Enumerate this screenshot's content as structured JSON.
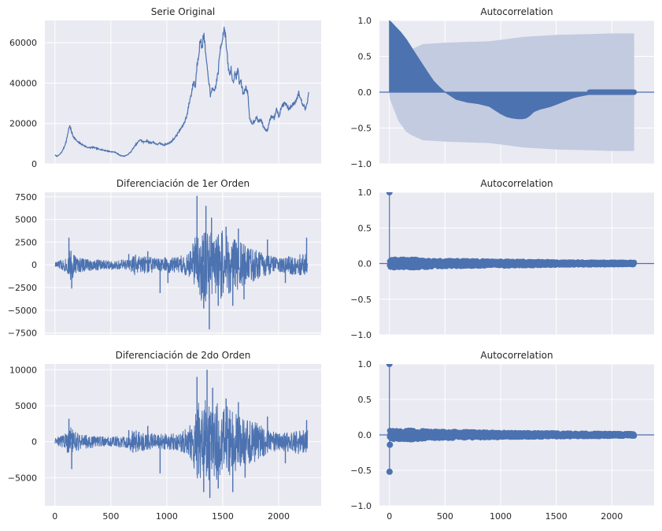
{
  "figure": {
    "background": "#ffffff",
    "plot_background": "#eaeaf2",
    "grid_color": "#ffffff",
    "line_color": "#4c72b0",
    "band_color": "#c3cbe0"
  },
  "chart_data": [
    {
      "type": "line",
      "title": "Serie Original",
      "xlabel": "",
      "ylabel": "",
      "xlim": [
        -90,
        2380
      ],
      "ylim": [
        0,
        71000
      ],
      "xticks": [
        0,
        500,
        1000,
        1500,
        2000
      ],
      "show_xticklabels": false,
      "yticks": [
        0,
        20000,
        40000,
        60000
      ],
      "yticklabels": [
        "0",
        "20000",
        "40000",
        "60000"
      ],
      "grid": true,
      "series": [
        {
          "x": [
            0,
            20,
            40,
            60,
            80,
            100,
            115,
            130,
            145,
            160,
            180,
            200,
            230,
            260,
            300,
            340,
            380,
            420,
            460,
            500,
            540,
            580,
            620,
            650,
            680,
            700,
            730,
            760,
            790,
            820,
            850,
            880,
            910,
            940,
            970,
            1000,
            1040,
            1080,
            1120,
            1150,
            1180,
            1200,
            1220,
            1240,
            1255,
            1270,
            1285,
            1300,
            1315,
            1330,
            1345,
            1360,
            1375,
            1390,
            1405,
            1420,
            1440,
            1460,
            1480,
            1500,
            1515,
            1530,
            1545,
            1560,
            1575,
            1590,
            1605,
            1620,
            1635,
            1650,
            1665,
            1680,
            1695,
            1710,
            1725,
            1740,
            1760,
            1780,
            1800,
            1820,
            1840,
            1860,
            1880,
            1900,
            1920,
            1940,
            1960,
            1980,
            2000,
            2030,
            2060,
            2090,
            2120,
            2150,
            2180,
            2210,
            2240,
            2255,
            2270
          ],
          "y": [
            4200,
            3800,
            4500,
            5800,
            8000,
            11000,
            15000,
            19000,
            16500,
            14000,
            12500,
            11000,
            10000,
            9000,
            8000,
            8200,
            7500,
            7000,
            6500,
            6000,
            5800,
            4200,
            3800,
            4500,
            6000,
            7800,
            9800,
            12000,
            10800,
            11500,
            10400,
            10800,
            9600,
            10200,
            9400,
            9800,
            11000,
            13500,
            17000,
            19500,
            24000,
            30000,
            35000,
            41000,
            38000,
            49000,
            55000,
            61000,
            58000,
            64000,
            56000,
            47000,
            42000,
            33000,
            38000,
            35000,
            39000,
            46000,
            58000,
            63000,
            68000,
            60000,
            50000,
            44000,
            47000,
            40000,
            44000,
            43000,
            47000,
            40000,
            41000,
            35000,
            36000,
            38000,
            35000,
            22000,
            20000,
            21000,
            23000,
            21000,
            22000,
            19000,
            17000,
            16500,
            22000,
            24000,
            22500,
            28000,
            23000,
            29000,
            30000,
            27000,
            29000,
            31000,
            35000,
            30000,
            27000,
            31000,
            35500
          ]
        }
      ]
    },
    {
      "type": "area",
      "title": "Autocorrelation",
      "xlabel": "",
      "ylabel": "",
      "xlim": [
        -90,
        2380
      ],
      "ylim": [
        -1.0,
        1.0
      ],
      "xticks": [
        0,
        500,
        1000,
        1500,
        2000
      ],
      "show_xticklabels": false,
      "yticks": [
        -1.0,
        -0.5,
        0.0,
        0.5,
        1.0
      ],
      "yticklabels": [
        "−1.0",
        "−0.5",
        "0.0",
        "0.5",
        "1.0"
      ],
      "grid": true,
      "acf": {
        "x": [
          0,
          20,
          50,
          100,
          150,
          200,
          250,
          300,
          350,
          400,
          450,
          500,
          560,
          600,
          700,
          800,
          900,
          950,
          1000,
          1050,
          1100,
          1150,
          1200,
          1230,
          1260,
          1300,
          1350,
          1400,
          1450,
          1500,
          1550,
          1600,
          1650,
          1700,
          1800,
          1900,
          2000,
          2100,
          2200
        ],
        "y": [
          1.0,
          0.97,
          0.92,
          0.84,
          0.74,
          0.62,
          0.5,
          0.38,
          0.26,
          0.15,
          0.07,
          0.0,
          -0.06,
          -0.1,
          -0.14,
          -0.16,
          -0.2,
          -0.25,
          -0.3,
          -0.34,
          -0.36,
          -0.37,
          -0.37,
          -0.36,
          -0.33,
          -0.27,
          -0.24,
          -0.22,
          -0.2,
          -0.17,
          -0.14,
          -0.11,
          -0.08,
          -0.06,
          -0.03,
          -0.02,
          -0.01,
          -0.005,
          0.0
        ]
      },
      "confidence_band": {
        "x": [
          0,
          5,
          30,
          80,
          150,
          200,
          300,
          500,
          700,
          900,
          1000,
          1200,
          1500,
          1800,
          2000,
          2200
        ],
        "upper": [
          0.04,
          0.1,
          0.2,
          0.4,
          0.55,
          0.6,
          0.67,
          0.69,
          0.7,
          0.71,
          0.73,
          0.77,
          0.8,
          0.81,
          0.82,
          0.82
        ]
      }
    },
    {
      "type": "line",
      "title": "Diferenciación de 1er Orden",
      "xlabel": "",
      "ylabel": "",
      "xlim": [
        -90,
        2380
      ],
      "ylim": [
        -7700,
        8000
      ],
      "xticks": [
        0,
        500,
        1000,
        1500,
        2000
      ],
      "show_xticklabels": false,
      "yticks": [
        -7500,
        -5000,
        -2500,
        0,
        2500,
        5000,
        7500
      ],
      "yticklabels": [
        "−7500",
        "−5000",
        "−2500",
        "0",
        "2500",
        "5000",
        "7500"
      ],
      "grid": true,
      "series": [
        {
          "envelope": {
            "x": [
              0,
              100,
              140,
              200,
              300,
              500,
              650,
              700,
              900,
              1100,
              1200,
              1250,
              1300,
              1400,
              1500,
              1600,
              1700,
              1800,
              1900,
              2000,
              2100,
              2200,
              2260
            ],
            "amp": [
              350,
              800,
              1800,
              900,
              700,
              500,
              600,
              1200,
              800,
              900,
              1500,
              3000,
              4500,
              3500,
              3800,
              3000,
              2200,
              1800,
              1200,
              800,
              1000,
              1200,
              1200
            ]
          },
          "spikes": [
            {
              "x": 125,
              "y": 3000
            },
            {
              "x": 150,
              "y": -2600
            },
            {
              "x": 660,
              "y": 1200
            },
            {
              "x": 830,
              "y": 1500
            },
            {
              "x": 940,
              "y": -3100
            },
            {
              "x": 1010,
              "y": -2000
            },
            {
              "x": 1270,
              "y": 7600
            },
            {
              "x": 1330,
              "y": -4800
            },
            {
              "x": 1350,
              "y": 6500
            },
            {
              "x": 1380,
              "y": -7100
            },
            {
              "x": 1400,
              "y": 5200
            },
            {
              "x": 1460,
              "y": -4500
            },
            {
              "x": 1530,
              "y": 4200
            },
            {
              "x": 1590,
              "y": -4500
            },
            {
              "x": 1640,
              "y": 4000
            },
            {
              "x": 1690,
              "y": -3800
            },
            {
              "x": 1900,
              "y": 2800
            },
            {
              "x": 2060,
              "y": -2000
            },
            {
              "x": 2250,
              "y": 3000
            }
          ]
        }
      ]
    },
    {
      "type": "scatter",
      "title": "Autocorrelation",
      "xlabel": "",
      "ylabel": "",
      "xlim": [
        -90,
        2380
      ],
      "ylim": [
        -1.0,
        1.0
      ],
      "xticks": [
        0,
        500,
        1000,
        1500,
        2000
      ],
      "show_xticklabels": false,
      "yticks": [
        -1.0,
        -0.5,
        0.0,
        0.5,
        1.0
      ],
      "yticklabels": [
        "−1.0",
        "−0.5",
        "0.0",
        "0.5",
        "1.0"
      ],
      "grid": true,
      "lags": 2200,
      "lag0": 1.0,
      "special_lags": [],
      "noise_envelope": {
        "x": [
          0,
          50,
          200,
          400,
          800,
          1200,
          1600,
          2200
        ],
        "amp": [
          0.05,
          0.06,
          0.06,
          0.045,
          0.035,
          0.03,
          0.02,
          0.015
        ]
      }
    },
    {
      "type": "line",
      "title": "Diferenciación de 2do Orden",
      "xlabel": "",
      "ylabel": "",
      "xlim": [
        -90,
        2380
      ],
      "ylim": [
        -8900,
        10800
      ],
      "xticks": [
        0,
        500,
        1000,
        1500,
        2000
      ],
      "xticklabels": [
        "0",
        "500",
        "1000",
        "1500",
        "2000"
      ],
      "show_xticklabels": true,
      "yticks": [
        -5000,
        0,
        5000,
        10000
      ],
      "yticklabels": [
        "−5000",
        "0",
        "5000",
        "10000"
      ],
      "grid": true,
      "series": [
        {
          "envelope": {
            "x": [
              0,
              100,
              140,
              200,
              300,
              500,
              650,
              700,
              900,
              1100,
              1200,
              1250,
              1300,
              1400,
              1500,
              1600,
              1700,
              1800,
              1900,
              2000,
              2100,
              2200,
              2260
            ],
            "amp": [
              500,
              1200,
              2500,
              1300,
              900,
              700,
              900,
              1700,
              1100,
              1300,
              2000,
              4500,
              6500,
              5500,
              5500,
              4200,
              3300,
              2800,
              1800,
              1200,
              1500,
              1800,
              1800
            ]
          },
          "spikes": [
            {
              "x": 125,
              "y": 3200
            },
            {
              "x": 150,
              "y": -3800
            },
            {
              "x": 660,
              "y": 1600
            },
            {
              "x": 830,
              "y": 2200
            },
            {
              "x": 940,
              "y": -4400
            },
            {
              "x": 1270,
              "y": 9000
            },
            {
              "x": 1330,
              "y": -7000
            },
            {
              "x": 1360,
              "y": 10000
            },
            {
              "x": 1385,
              "y": -7800
            },
            {
              "x": 1410,
              "y": 7500
            },
            {
              "x": 1460,
              "y": -6500
            },
            {
              "x": 1530,
              "y": 6000
            },
            {
              "x": 1590,
              "y": -7000
            },
            {
              "x": 1640,
              "y": 5500
            },
            {
              "x": 1700,
              "y": -5000
            },
            {
              "x": 1900,
              "y": 3500
            },
            {
              "x": 2060,
              "y": -3000
            },
            {
              "x": 2250,
              "y": 3000
            }
          ]
        }
      ]
    },
    {
      "type": "scatter",
      "title": "Autocorrelation",
      "xlabel": "",
      "ylabel": "",
      "xlim": [
        -90,
        2380
      ],
      "ylim": [
        -1.0,
        1.0
      ],
      "xticks": [
        0,
        500,
        1000,
        1500,
        2000
      ],
      "xticklabels": [
        "0",
        "500",
        "1000",
        "1500",
        "2000"
      ],
      "show_xticklabels": true,
      "yticks": [
        -1.0,
        -0.5,
        0.0,
        0.5,
        1.0
      ],
      "yticklabels": [
        "−1.0",
        "−0.5",
        "0.0",
        "0.5",
        "1.0"
      ],
      "grid": true,
      "lags": 2200,
      "lag0": 1.0,
      "special_lags": [
        {
          "x": 1,
          "y": -0.52
        },
        {
          "x": 4,
          "y": -0.14
        }
      ],
      "noise_envelope": {
        "x": [
          0,
          50,
          200,
          400,
          800,
          1200,
          1600,
          2200
        ],
        "amp": [
          0.06,
          0.07,
          0.065,
          0.05,
          0.04,
          0.03,
          0.025,
          0.015
        ]
      }
    }
  ]
}
